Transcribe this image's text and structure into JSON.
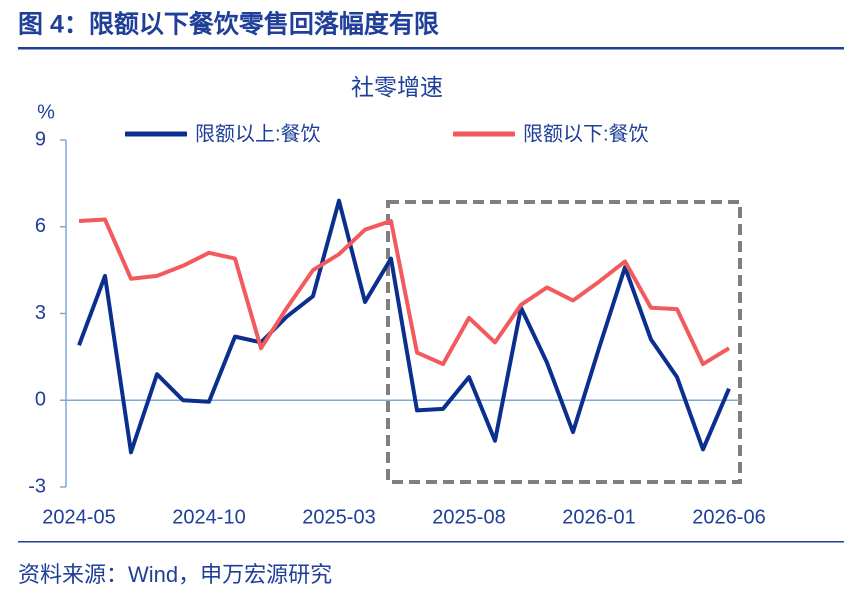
{
  "header": {
    "title": "图 4：限额以下餐饮零售回落幅度有限"
  },
  "chart_data": {
    "type": "line",
    "title": "社零增速",
    "y_label": "%",
    "categories": [
      "2024-05",
      null,
      null,
      null,
      null,
      "2024-10",
      null,
      null,
      null,
      null,
      "2025-03",
      null,
      null,
      null,
      null,
      "2025-08",
      null,
      null,
      null,
      null,
      "2026-01",
      null,
      null,
      null,
      null,
      "2026-06"
    ],
    "series": [
      {
        "name": "限额以上:餐饮",
        "color": "#0b2f8e",
        "values": [
          1.9,
          4.3,
          -1.8,
          0.9,
          0,
          -0.05,
          2.2,
          2.0,
          2.9,
          3.6,
          6.9,
          3.4,
          4.9,
          -0.35,
          -0.3,
          0.8,
          -1.4,
          3.2,
          1.3,
          -1.1,
          1.8,
          4.6,
          2.1,
          0.8,
          -1.7,
          0.4
        ]
      },
      {
        "name": "限额以下:餐饮",
        "color": "#f25a5e",
        "values": [
          6.2,
          6.25,
          4.2,
          4.3,
          4.65,
          5.1,
          4.9,
          1.8,
          3.2,
          4.5,
          5.05,
          5.9,
          6.2,
          1.65,
          1.25,
          2.85,
          2.0,
          3.3,
          3.9,
          3.45,
          4.1,
          4.8,
          3.2,
          3.15,
          1.25,
          1.8
        ]
      }
    ],
    "ylim": [
      -3,
      9
    ],
    "yticks": [
      -3,
      0,
      3,
      6,
      9
    ],
    "legend": "top"
  },
  "footer": {
    "source": "资料来源：Wind，申万宏源研究"
  }
}
